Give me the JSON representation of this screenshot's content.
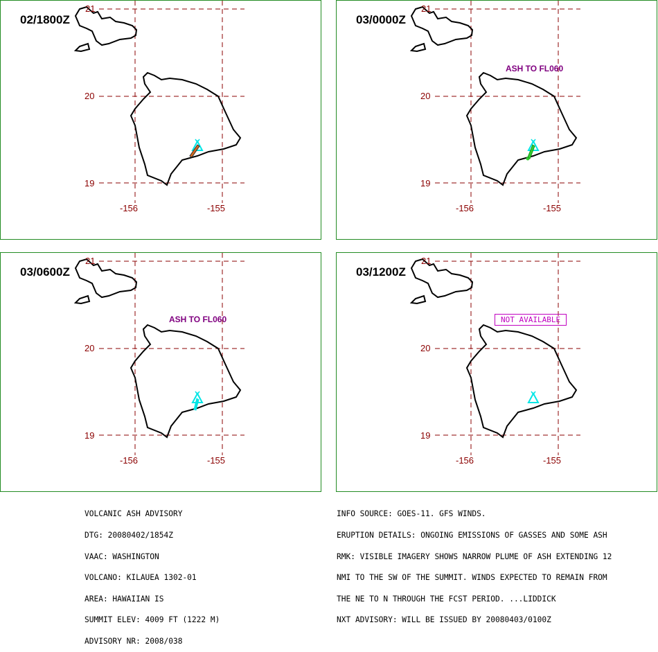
{
  "colors": {
    "panel_border": "#228b22",
    "grid": "#8b0000",
    "coast": "#000000",
    "volcano": "#00e5e5",
    "ash_annotation": "#800080",
    "not_available": "#c000c0"
  },
  "panels": [
    {
      "time": "02/1800Z",
      "lat_labels": [
        "21",
        "20",
        "19"
      ],
      "lon_labels": [
        "-156",
        "-155"
      ],
      "annotation": "",
      "status": "",
      "plume": "orange"
    },
    {
      "time": "03/0000Z",
      "lat_labels": [
        "21",
        "20",
        "19"
      ],
      "lon_labels": [
        "-156",
        "-155"
      ],
      "annotation": "ASH TO FL060",
      "status": "",
      "plume": "green"
    },
    {
      "time": "03/0600Z",
      "lat_labels": [
        "21",
        "20",
        "19"
      ],
      "lon_labels": [
        "-156",
        "-155"
      ],
      "annotation": "ASH TO FL060",
      "status": "",
      "plume": "cyan"
    },
    {
      "time": "03/1200Z",
      "lat_labels": [
        "21",
        "20",
        "19"
      ],
      "lon_labels": [
        "-156",
        "-155"
      ],
      "annotation": "",
      "status": "NOT AVAILABLE",
      "plume": "none"
    }
  ],
  "advisory_left": [
    "VOLCANIC ASH ADVISORY",
    "DTG: 20080402/1854Z",
    "VAAC: WASHINGTON",
    "VOLCANO: KILAUEA 1302-01",
    "AREA: HAWAIIAN IS",
    "SUMMIT ELEV: 4009 FT (1222 M)",
    "ADVISORY NR: 2008/038"
  ],
  "advisory_right": [
    "INFO SOURCE: GOES-11. GFS WINDS.",
    "ERUPTION DETAILS: ONGOING EMISSIONS OF GASSES AND SOME ASH",
    "RMK: VISIBLE IMAGERY SHOWS NARROW PLUME OF ASH EXTENDING 12",
    "NMI TO THE SW OF THE SUMMIT. WINDS EXPECTED TO REMAIN FROM",
    "THE NE TO N THROUGH THE FCST PERIOD. ...LIDDICK",
    "NXT ADVISORY: WILL BE ISSUED BY 20080403/0100Z"
  ]
}
